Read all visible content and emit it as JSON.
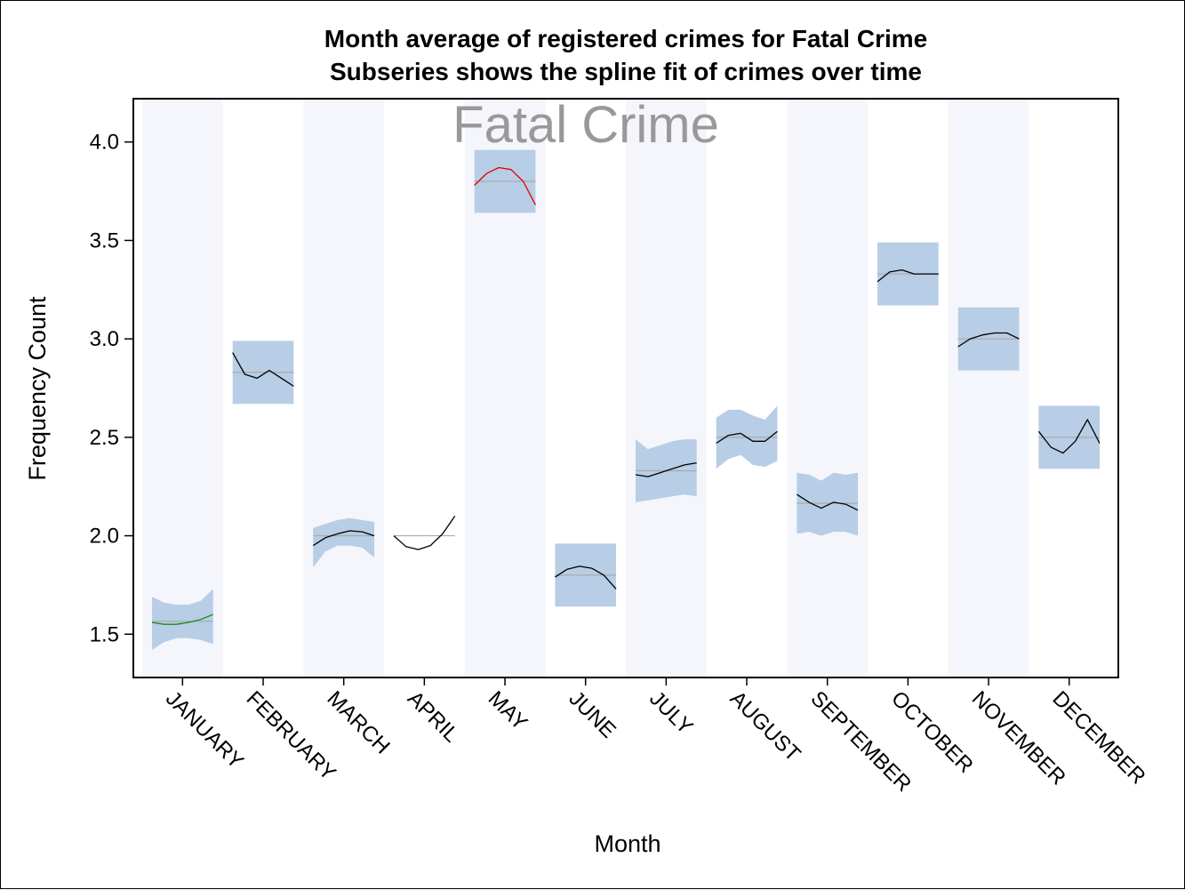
{
  "chart_data": {
    "type": "line",
    "title": "Month average of registered crimes for Fatal Crime",
    "subtitle": "Subseries shows the spline fit of crimes over time",
    "inset_label": "Fatal Crime",
    "xlabel": "Month",
    "ylabel": "Frequency Count",
    "ylim": [
      1.28,
      4.22
    ],
    "yticks": [
      "1.5",
      "2.0",
      "2.5",
      "3.0",
      "3.5",
      "4.0"
    ],
    "grid": false,
    "alternating_column_bands": true,
    "colors": {
      "band": "#f4f6fb",
      "ci_fill": "#b8cde6",
      "mean_line": "#aaaaaa",
      "spline_default": "#000000",
      "spline_low": "#1a8a1a",
      "spline_high": "#e00000",
      "watermark": "#999999"
    },
    "categories": [
      "JANUARY",
      "FEBRUARY",
      "MARCH",
      "APRIL",
      "MAY",
      "JUNE",
      "JULY",
      "AUGUST",
      "SEPTEMBER",
      "OCTOBER",
      "NOVEMBER",
      "DECEMBER"
    ],
    "monthly_mean": [
      1.565,
      2.83,
      2.0,
      2.0,
      3.8,
      1.8,
      2.33,
      2.5,
      2.165,
      3.33,
      3.0,
      2.5
    ],
    "series": [
      {
        "category": "JANUARY",
        "mean": 1.565,
        "color": "green",
        "spline": [
          1.56,
          1.55,
          1.55,
          1.56,
          1.575,
          1.6
        ],
        "ci_upper": [
          1.69,
          1.66,
          1.65,
          1.65,
          1.67,
          1.73
        ],
        "ci_lower": [
          1.42,
          1.46,
          1.48,
          1.48,
          1.47,
          1.45
        ]
      },
      {
        "category": "FEBRUARY",
        "mean": 2.83,
        "color": "black",
        "spline": [
          2.93,
          2.82,
          2.8,
          2.84,
          2.8,
          2.76
        ],
        "ci_upper": [
          2.99,
          2.99,
          2.99,
          2.99,
          2.99,
          2.99
        ],
        "ci_lower": [
          2.67,
          2.67,
          2.67,
          2.67,
          2.67,
          2.67
        ]
      },
      {
        "category": "MARCH",
        "mean": 2.0,
        "color": "black",
        "spline": [
          1.95,
          1.99,
          2.01,
          2.025,
          2.02,
          2.0
        ],
        "ci_upper": [
          2.04,
          2.06,
          2.08,
          2.09,
          2.08,
          2.07
        ],
        "ci_lower": [
          1.84,
          1.92,
          1.95,
          1.95,
          1.94,
          1.89
        ]
      },
      {
        "category": "APRIL",
        "mean": 2.0,
        "color": "black",
        "spline": [
          2.0,
          1.945,
          1.93,
          1.95,
          2.01,
          2.1
        ],
        "ci_upper": null,
        "ci_lower": null
      },
      {
        "category": "MAY",
        "mean": 3.8,
        "color": "red",
        "spline": [
          3.78,
          3.84,
          3.87,
          3.86,
          3.8,
          3.68
        ],
        "ci_upper": [
          3.96,
          3.96,
          3.96,
          3.96,
          3.96,
          3.96
        ],
        "ci_lower": [
          3.64,
          3.64,
          3.64,
          3.64,
          3.64,
          3.64
        ]
      },
      {
        "category": "JUNE",
        "mean": 1.8,
        "color": "black",
        "spline": [
          1.79,
          1.83,
          1.845,
          1.835,
          1.8,
          1.73
        ],
        "ci_upper": [
          1.96,
          1.96,
          1.96,
          1.96,
          1.96,
          1.96
        ],
        "ci_lower": [
          1.64,
          1.64,
          1.64,
          1.64,
          1.64,
          1.64
        ]
      },
      {
        "category": "JULY",
        "mean": 2.33,
        "color": "black",
        "spline": [
          2.31,
          2.3,
          2.32,
          2.34,
          2.36,
          2.37
        ],
        "ci_upper": [
          2.49,
          2.44,
          2.46,
          2.48,
          2.49,
          2.49
        ],
        "ci_lower": [
          2.17,
          2.18,
          2.19,
          2.2,
          2.21,
          2.2
        ]
      },
      {
        "category": "AUGUST",
        "mean": 2.5,
        "color": "black",
        "spline": [
          2.47,
          2.51,
          2.52,
          2.48,
          2.48,
          2.53
        ],
        "ci_upper": [
          2.6,
          2.64,
          2.64,
          2.61,
          2.59,
          2.66
        ],
        "ci_lower": [
          2.34,
          2.39,
          2.41,
          2.36,
          2.35,
          2.38
        ]
      },
      {
        "category": "SEPTEMBER",
        "mean": 2.165,
        "color": "black",
        "spline": [
          2.21,
          2.17,
          2.14,
          2.17,
          2.16,
          2.13
        ],
        "ci_upper": [
          2.32,
          2.31,
          2.28,
          2.32,
          2.31,
          2.32
        ],
        "ci_lower": [
          2.01,
          2.02,
          2.0,
          2.02,
          2.02,
          2.0
        ]
      },
      {
        "category": "OCTOBER",
        "mean": 3.33,
        "color": "black",
        "spline": [
          3.29,
          3.34,
          3.35,
          3.33,
          3.33,
          3.33
        ],
        "ci_upper": [
          3.49,
          3.49,
          3.49,
          3.49,
          3.49,
          3.49
        ],
        "ci_lower": [
          3.17,
          3.17,
          3.17,
          3.17,
          3.17,
          3.17
        ]
      },
      {
        "category": "NOVEMBER",
        "mean": 3.0,
        "color": "black",
        "spline": [
          2.96,
          3.0,
          3.02,
          3.03,
          3.03,
          3.0
        ],
        "ci_upper": [
          3.16,
          3.16,
          3.16,
          3.16,
          3.16,
          3.16
        ],
        "ci_lower": [
          2.84,
          2.84,
          2.84,
          2.84,
          2.84,
          2.84
        ]
      },
      {
        "category": "DECEMBER",
        "mean": 2.5,
        "color": "black",
        "spline": [
          2.53,
          2.45,
          2.42,
          2.48,
          2.59,
          2.47
        ],
        "ci_upper": [
          2.66,
          2.66,
          2.66,
          2.66,
          2.66,
          2.66
        ],
        "ci_lower": [
          2.34,
          2.34,
          2.34,
          2.34,
          2.34,
          2.34
        ]
      }
    ]
  }
}
